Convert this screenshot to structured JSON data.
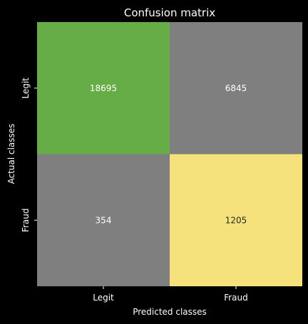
{
  "chart_data": {
    "type": "heatmap",
    "title": "Confusion matrix",
    "xlabel": "Predicted classes",
    "ylabel": "Actual classes",
    "x_categories": [
      "Legit",
      "Fraud"
    ],
    "y_categories": [
      "Legit",
      "Fraud"
    ],
    "values": [
      [
        18695,
        6845
      ],
      [
        354,
        1205
      ]
    ],
    "cell_colors": [
      [
        "#66ad47",
        "#7f7f7f"
      ],
      [
        "#7f7f7f",
        "#f5e27d"
      ]
    ],
    "text_colors": [
      [
        "#ffffff",
        "#ffffff"
      ],
      [
        "#ffffff",
        "#262626"
      ]
    ],
    "colorbar": false,
    "background": "#000000"
  }
}
